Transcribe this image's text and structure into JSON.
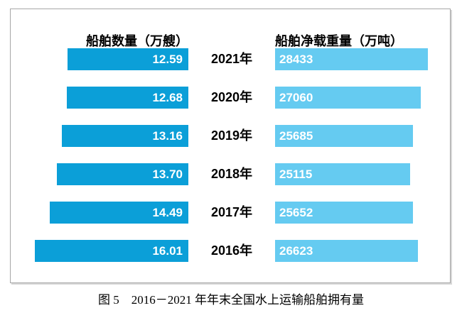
{
  "chart": {
    "left_header": "船舶数量（万艘）",
    "right_header": "船舶净载重量（万吨）",
    "caption": "图 5　2016－2021 年年末全国水上运输船舶拥有量"
  },
  "colors": {
    "ship_count_bar": "#0b9fd8",
    "deadweight_bar": "#65cbf1",
    "frame_border": "#a6a6a6",
    "value_label_text": "#ffffff",
    "axis_text": "#000000"
  },
  "chart_data": {
    "type": "bar",
    "orientation": "horizontal",
    "title": "图 5　2016－2021 年年末全国水上运输船舶拥有量",
    "categories": [
      "2021年",
      "2020年",
      "2019年",
      "2018年",
      "2017年",
      "2016年"
    ],
    "series": [
      {
        "name": "船舶数量（万艘）",
        "values": [
          12.59,
          12.68,
          13.16,
          13.7,
          14.49,
          16.01
        ],
        "labels": [
          "12.59",
          "12.68",
          "13.16",
          "13.70",
          "14.49",
          "16.01"
        ],
        "color": "#0b9fd8",
        "bar_direction": "right-to-left",
        "value_label_position": "inside-end"
      },
      {
        "name": "船舶净载重量（万吨）",
        "values": [
          28433,
          27060,
          25685,
          25115,
          25652,
          26623
        ],
        "labels": [
          "28433",
          "27060",
          "25685",
          "25115",
          "25652",
          "26623"
        ],
        "color": "#65cbf1",
        "bar_direction": "left-to-right",
        "value_label_position": "inside-start"
      }
    ],
    "grid": false,
    "legend_position": "column-headers-top",
    "value_labels": "inside",
    "axis_scale_note": "bars proportional to value from zero"
  }
}
